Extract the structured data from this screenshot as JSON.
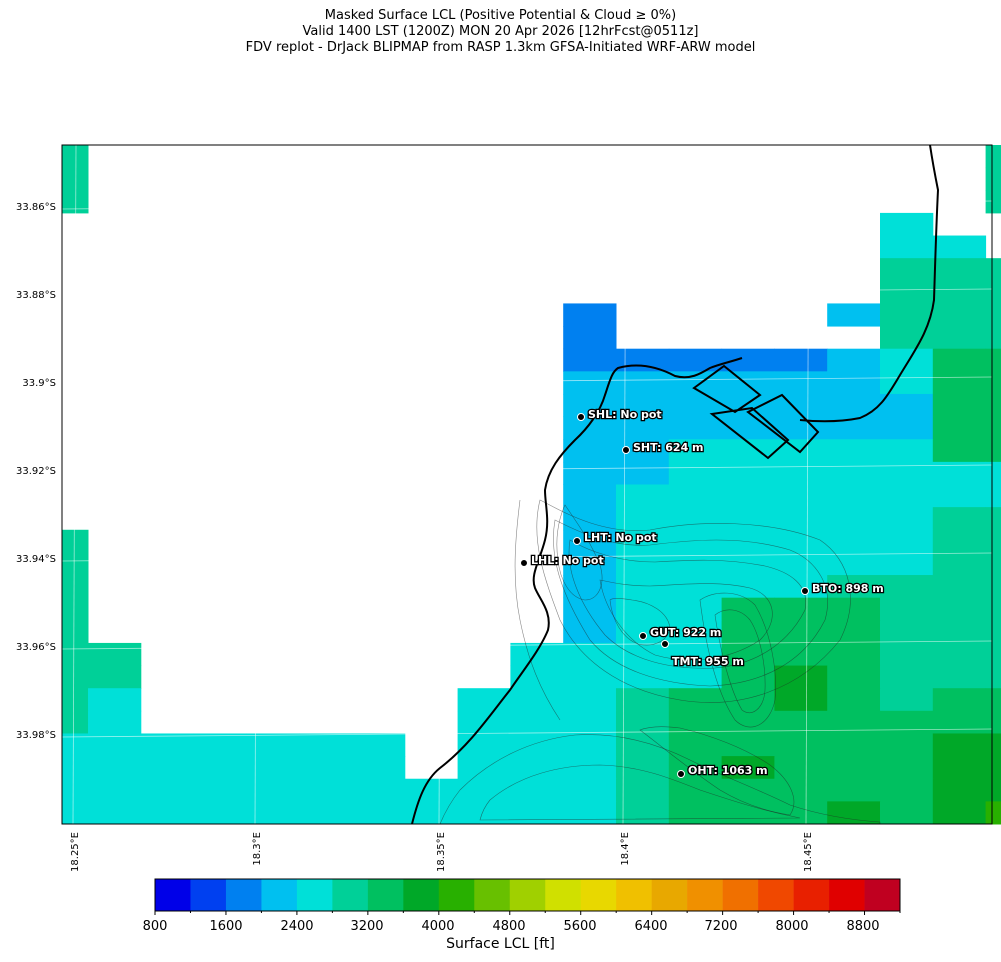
{
  "title": {
    "line1": "Masked Surface LCL (Positive Potential & Cloud ≥ 0%)",
    "line2": "Valid 1400 LST (1200Z) MON 20 Apr 2026 [12hrFcst@0511z]",
    "line3": "FDV replot - DrJack BLIPMAP from RASP 1.3km GFSA-Initiated WRF-ARW model"
  },
  "axes": {
    "lat_labels": [
      "33.86°S",
      "33.88°S",
      "33.9°S",
      "33.92°S",
      "33.94°S",
      "33.96°S",
      "33.98°S"
    ],
    "lon_labels": [
      "18.25°E",
      "18.3°E",
      "18.35°E",
      "18.4°E",
      "18.45°E"
    ]
  },
  "colorbar": {
    "label": "Surface LCL [ft]",
    "tick_labels": [
      "800",
      "1600",
      "2400",
      "3200",
      "4000",
      "4800",
      "5600",
      "6400",
      "7200",
      "8000",
      "8800"
    ],
    "colors": [
      "#0000e8",
      "#0040f0",
      "#0080f0",
      "#00c0f0",
      "#00e0d8",
      "#00d098",
      "#00c060",
      "#00a828",
      "#28b000",
      "#68c000",
      "#a0d000",
      "#d0e000",
      "#e8d800",
      "#f0c000",
      "#e8a800",
      "#f09000",
      "#f07000",
      "#f04800",
      "#e82000",
      "#e00000",
      "#c00020"
    ]
  },
  "sites": [
    {
      "code": "SHL",
      "label": "SHL: No pot"
    },
    {
      "code": "SHT",
      "label": "SHT: 624 m"
    },
    {
      "code": "LHT",
      "label": "LHT: No pot"
    },
    {
      "code": "LHL",
      "label": "LHL: No pot"
    },
    {
      "code": "BTO",
      "label": "BTO: 898 m"
    },
    {
      "code": "GUT",
      "label": "GUT: 922 m"
    },
    {
      "code": "TMT",
      "label": "TMT: 955 m"
    },
    {
      "code": "OHT",
      "label": "OHT: 1063 m"
    }
  ],
  "cell_colors": {
    "a": "#00d098",
    "b": "#00e0d8",
    "c": "#00c0f0",
    "d": "#0080f0",
    "e": "#00c060",
    "f": "#00a828",
    "g": "#28b000"
  },
  "grid": [
    "a.................a",
    "a.................a",
    "a.................a",
    "................b..",
    "................bb.",
    "................aaa",
    "................aaa",
    "..........d....caaa",
    "..........d.....aaa",
    "..........dddddcbee",
    "..........ccccccbee",
    "..........cccccccee",
    "..........cccccccee",
    "..........ccbbbbbee",
    "..........ccbbbbbbb",
    "..........cbbbbbbbb",
    "..........cbbbbbbaa",
    "a.........cbbbbbbaa",
    "a.........cbbbbbbaa",
    "a.........cbbbbaaaa",
    "a.........cbbeeeaaa",
    "a.........cbbeeeaaa",
    "aa.......bbbbeeeaaa",
    "aa.......bbbbefeaaa",
    "ab......bbbaeefeaee",
    "ab......bbbaeeeeeee",
    "bbbbbbb.bbbaeeeeeff",
    "bbbbbbb.bbbaefeeeff",
    "bbbbbbbbbbbaeeeeeff",
    "bbbbbbbbbbbaeeefefg"
  ]
}
